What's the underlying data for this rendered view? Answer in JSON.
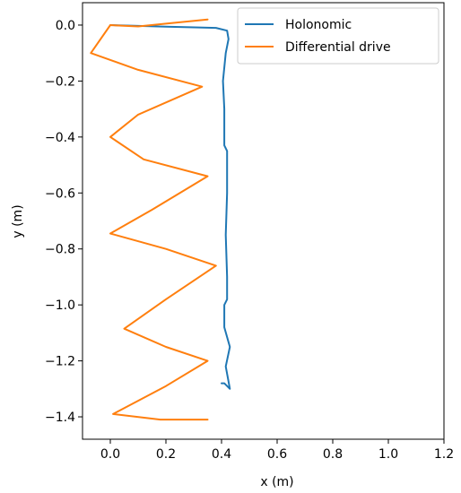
{
  "chart_data": {
    "type": "line",
    "title": "",
    "xlabel": "x (m)",
    "ylabel": "y (m)",
    "xlim": [
      -0.1,
      1.2
    ],
    "ylim": [
      -1.48,
      0.08
    ],
    "xticks": [
      "0.0",
      "0.2",
      "0.4",
      "0.6",
      "0.8",
      "1.0",
      "1.2"
    ],
    "yticks": [
      "0.0",
      "−0.2",
      "−0.4",
      "−0.6",
      "−0.8",
      "−1.0",
      "−1.2",
      "−1.4"
    ],
    "grid": false,
    "legend_position": "top-right",
    "series": [
      {
        "name": "Holonomic",
        "color": "#1f77b4",
        "points": [
          [
            0.0,
            0.0
          ],
          [
            0.1,
            -0.003
          ],
          [
            0.2,
            -0.006
          ],
          [
            0.3,
            -0.008
          ],
          [
            0.38,
            -0.01
          ],
          [
            0.42,
            -0.02
          ],
          [
            0.425,
            -0.05
          ],
          [
            0.415,
            -0.1
          ],
          [
            0.405,
            -0.2
          ],
          [
            0.41,
            -0.3
          ],
          [
            0.41,
            -0.43
          ],
          [
            0.42,
            -0.45
          ],
          [
            0.42,
            -0.6
          ],
          [
            0.415,
            -0.75
          ],
          [
            0.42,
            -0.9
          ],
          [
            0.42,
            -0.98
          ],
          [
            0.41,
            -1.0
          ],
          [
            0.41,
            -1.08
          ],
          [
            0.43,
            -1.15
          ],
          [
            0.415,
            -1.22
          ],
          [
            0.43,
            -1.3
          ],
          [
            0.41,
            -1.28
          ],
          [
            0.4,
            -1.28
          ]
        ]
      },
      {
        "name": "Differential drive",
        "color": "#ff7f0e",
        "points": [
          [
            0.35,
            0.02
          ],
          [
            0.2,
            0.005
          ],
          [
            0.1,
            -0.005
          ],
          [
            0.0,
            0.0
          ],
          [
            -0.07,
            -0.1
          ],
          [
            0.1,
            -0.16
          ],
          [
            0.33,
            -0.22
          ],
          [
            0.1,
            -0.32
          ],
          [
            0.0,
            -0.4
          ],
          [
            0.12,
            -0.48
          ],
          [
            0.35,
            -0.54
          ],
          [
            0.15,
            -0.66
          ],
          [
            0.0,
            -0.745
          ],
          [
            0.2,
            -0.8
          ],
          [
            0.38,
            -0.86
          ],
          [
            0.2,
            -0.98
          ],
          [
            0.05,
            -1.085
          ],
          [
            0.2,
            -1.15
          ],
          [
            0.35,
            -1.2
          ],
          [
            0.2,
            -1.29
          ],
          [
            0.01,
            -1.39
          ],
          [
            0.18,
            -1.41
          ],
          [
            0.35,
            -1.41
          ]
        ]
      }
    ]
  }
}
